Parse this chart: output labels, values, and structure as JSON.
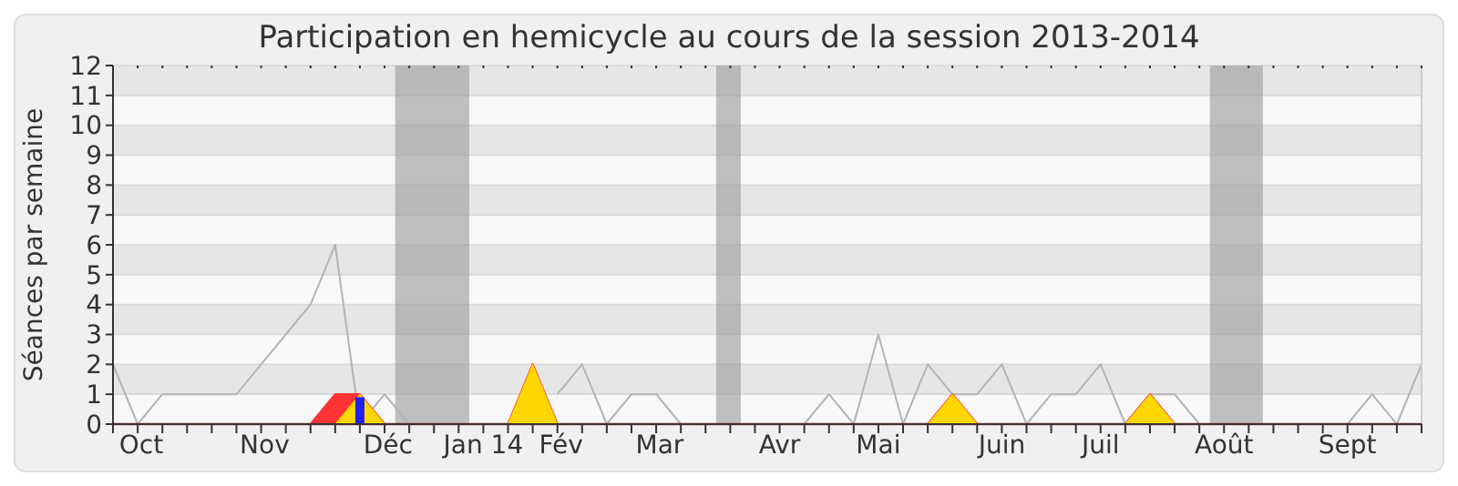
{
  "chart_data": {
    "type": "line",
    "title": "Participation en hemicycle au cours de la session 2013-2014",
    "ylabel": "Séances par semaine",
    "x": [
      "2013-09-30",
      "2013-10-07",
      "2013-10-14",
      "2013-10-21",
      "2013-10-28",
      "2013-11-04",
      "2013-11-11",
      "2013-11-18",
      "2013-11-25",
      "2013-12-02",
      "2013-12-09",
      "2013-12-16",
      "2013-12-23",
      "2013-12-30",
      "2014-01-06",
      "2014-01-13",
      "2014-01-20",
      "2014-01-27",
      "2014-02-03",
      "2014-02-10",
      "2014-02-17",
      "2014-02-24",
      "2014-03-03",
      "2014-03-10",
      "2014-03-17",
      "2014-03-24",
      "2014-03-31",
      "2014-04-07",
      "2014-04-14",
      "2014-04-21",
      "2014-04-28",
      "2014-05-05",
      "2014-05-12",
      "2014-05-19",
      "2014-05-26",
      "2014-06-02",
      "2014-06-09",
      "2014-06-16",
      "2014-06-23",
      "2014-06-30",
      "2014-07-07",
      "2014-07-14",
      "2014-07-21",
      "2014-07-28",
      "2014-08-04",
      "2014-08-11",
      "2014-08-18",
      "2014-08-25",
      "2014-09-01",
      "2014-09-08",
      "2014-09-15",
      "2014-09-22",
      "2014-09-29",
      "2014-10-06"
    ],
    "series": [
      {
        "color": "#b4b4b4",
        "values": [
          2,
          0,
          1,
          1,
          1,
          1,
          2,
          3,
          4,
          6,
          0,
          1,
          0,
          0,
          0,
          0,
          0,
          null,
          1,
          2,
          0,
          1,
          1,
          0,
          0,
          0,
          0,
          0,
          0,
          1,
          0,
          3,
          0,
          2,
          1,
          1,
          2,
          0,
          1,
          1,
          2,
          0,
          1,
          1,
          0,
          0,
          0,
          0,
          0,
          0,
          0,
          1,
          0,
          2
        ]
      },
      {
        "type": "area",
        "color": "#ff3333",
        "values": [
          0,
          0,
          0,
          0,
          0,
          0,
          0,
          0,
          0,
          1,
          1,
          0,
          0,
          0,
          0,
          0,
          0,
          2,
          0,
          0,
          0,
          0,
          0,
          0,
          0,
          0,
          0,
          0,
          0,
          0,
          0,
          0,
          0,
          0,
          1,
          0,
          0,
          0,
          0,
          0,
          0,
          0,
          1,
          0,
          0,
          0,
          0,
          0,
          0,
          0,
          0,
          0,
          0,
          0
        ]
      },
      {
        "type": "area",
        "color": "#ffd700",
        "values": [
          null,
          null,
          null,
          null,
          null,
          null,
          null,
          null,
          null,
          0,
          1,
          0,
          null,
          null,
          null,
          null,
          0,
          2,
          0,
          null,
          null,
          null,
          null,
          null,
          null,
          null,
          null,
          null,
          null,
          null,
          null,
          null,
          null,
          0,
          1,
          0,
          null,
          null,
          null,
          null,
          null,
          0,
          1,
          0,
          null,
          null,
          null,
          null,
          null,
          null,
          null,
          null,
          null,
          null
        ]
      },
      {
        "type": "bar",
        "color": "#2222ee",
        "values": [
          null,
          null,
          null,
          null,
          null,
          null,
          null,
          null,
          null,
          null,
          0.9,
          null,
          null,
          null,
          null,
          null,
          null,
          null,
          null,
          null,
          null,
          null,
          null,
          null,
          null,
          null,
          null,
          null,
          null,
          null,
          null,
          null,
          null,
          null,
          null,
          null,
          null,
          null,
          null,
          null,
          null,
          null,
          null,
          null,
          null,
          null,
          null,
          null,
          null,
          null,
          null,
          null,
          null,
          null
        ]
      }
    ],
    "xlim": [
      "2013-09-30",
      "2014-10-06"
    ],
    "xticks": [
      {
        "value": "2013-10-08",
        "label": "Oct"
      },
      {
        "value": "2013-11-12",
        "label": "Nov"
      },
      {
        "value": "2013-12-17",
        "label": "Déc"
      },
      {
        "value": "2014-01-13",
        "label": "Jan 14"
      },
      {
        "value": "2014-02-04",
        "label": "Fév"
      },
      {
        "value": "2014-03-04",
        "label": "Mar"
      },
      {
        "value": "2014-04-07",
        "label": "Avr"
      },
      {
        "value": "2014-05-05",
        "label": "Mai"
      },
      {
        "value": "2014-06-09",
        "label": "Juin"
      },
      {
        "value": "2014-07-07",
        "label": "Juil"
      },
      {
        "value": "2014-08-11",
        "label": "Août"
      },
      {
        "value": "2014-09-15",
        "label": "Sept"
      }
    ],
    "ylim": [
      0,
      12
    ],
    "yticks": [
      0,
      1,
      2,
      3,
      4,
      5,
      6,
      7,
      8,
      9,
      10,
      11,
      12
    ],
    "grid": "y",
    "bands": [
      {
        "axis": "x",
        "from": "2013-12-19",
        "to": "2014-01-09",
        "color": "#999999"
      },
      {
        "axis": "x",
        "from": "2014-03-20",
        "to": "2014-03-27",
        "color": "#999999"
      },
      {
        "axis": "x",
        "from": "2014-08-07",
        "to": "2014-08-22",
        "color": "#999999"
      }
    ]
  }
}
